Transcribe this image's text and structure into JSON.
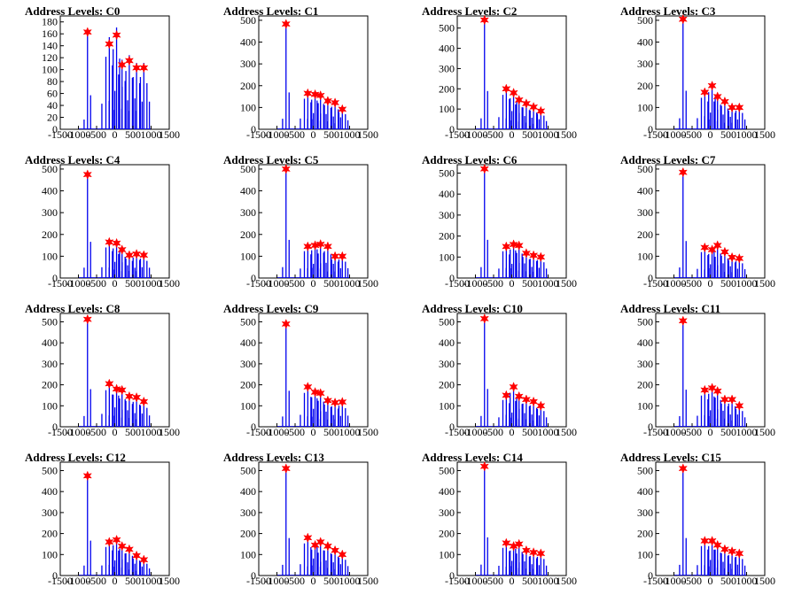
{
  "colors": {
    "histogram": "#0000ee",
    "peak_marker": "#ff0000",
    "axes": "#000000"
  },
  "chart_data": [
    {
      "type": "bar",
      "title": "Address Levels: C0",
      "xlim": [
        -1500,
        1500
      ],
      "ylim": [
        0,
        190
      ],
      "yticks": [
        0,
        20,
        40,
        60,
        80,
        100,
        120,
        140,
        160,
        180
      ],
      "xticks": [
        -1500,
        -1000,
        -500,
        0,
        500,
        1000,
        1500
      ],
      "xticklabels": [
        "-1500",
        "-1000",
        "-500",
        "0",
        "500",
        "1000",
        "1500"
      ],
      "peaks": [
        [
          -750,
          163
        ],
        [
          -150,
          143
        ],
        [
          50,
          158
        ],
        [
          200,
          108
        ],
        [
          400,
          115
        ],
        [
          600,
          103
        ],
        [
          800,
          103
        ]
      ]
    },
    {
      "type": "bar",
      "title": "Address Levels: C1",
      "xlim": [
        -1500,
        1500
      ],
      "ylim": [
        0,
        520
      ],
      "yticks": [
        0,
        100,
        200,
        300,
        400,
        500
      ],
      "xticks": [
        -1500,
        -1000,
        -500,
        0,
        500,
        1000,
        1500
      ],
      "xticklabels": [
        "-1500",
        "-1000",
        "-500",
        "0",
        "500",
        "1000",
        "1500"
      ],
      "peaks": [
        [
          -750,
          483
        ],
        [
          -150,
          165
        ],
        [
          50,
          160
        ],
        [
          200,
          155
        ],
        [
          400,
          130
        ],
        [
          600,
          122
        ],
        [
          800,
          92
        ]
      ]
    },
    {
      "type": "bar",
      "title": "Address Levels: C2",
      "xlim": [
        -1500,
        1500
      ],
      "ylim": [
        0,
        560
      ],
      "yticks": [
        0,
        100,
        200,
        300,
        400,
        500
      ],
      "xticks": [
        -1500,
        -1000,
        -500,
        0,
        500,
        1000,
        1500
      ],
      "xticklabels": [
        "-1500",
        "-1000",
        "-500",
        "0",
        "500",
        "1000",
        "1500"
      ],
      "peaks": [
        [
          -750,
          540
        ],
        [
          -150,
          200
        ],
        [
          50,
          180
        ],
        [
          200,
          145
        ],
        [
          400,
          127
        ],
        [
          600,
          110
        ],
        [
          800,
          90
        ]
      ]
    },
    {
      "type": "bar",
      "title": "Address Levels: C3",
      "xlim": [
        -1500,
        1500
      ],
      "ylim": [
        0,
        520
      ],
      "yticks": [
        0,
        100,
        200,
        300,
        400,
        500
      ],
      "xticks": [
        -1500,
        -1000,
        -500,
        0,
        500,
        1000,
        1500
      ],
      "xticklabels": [
        "-1500",
        "-1000",
        "-500",
        "0",
        "500",
        "1000",
        "1500"
      ],
      "peaks": [
        [
          -750,
          505
        ],
        [
          -150,
          170
        ],
        [
          50,
          200
        ],
        [
          200,
          150
        ],
        [
          400,
          127
        ],
        [
          600,
          100
        ],
        [
          800,
          100
        ]
      ]
    },
    {
      "type": "bar",
      "title": "Address Levels: C4",
      "xlim": [
        -1500,
        1500
      ],
      "ylim": [
        0,
        520
      ],
      "yticks": [
        0,
        100,
        200,
        300,
        400,
        500
      ],
      "xticks": [
        -1500,
        -1000,
        -500,
        0,
        500,
        1000,
        1500
      ],
      "xticklabels": [
        "-1500",
        "-1000",
        "-500",
        "0",
        "500",
        "1000",
        "1500"
      ],
      "peaks": [
        [
          -750,
          475
        ],
        [
          -150,
          165
        ],
        [
          50,
          160
        ],
        [
          200,
          130
        ],
        [
          400,
          105
        ],
        [
          600,
          110
        ],
        [
          800,
          105
        ]
      ]
    },
    {
      "type": "bar",
      "title": "Address Levels: C5",
      "xlim": [
        -1500,
        1500
      ],
      "ylim": [
        0,
        520
      ],
      "yticks": [
        0,
        100,
        200,
        300,
        400,
        500
      ],
      "xticks": [
        -1500,
        -1000,
        -500,
        0,
        500,
        1000,
        1500
      ],
      "xticklabels": [
        "-1500",
        "-1000",
        "-500",
        "0",
        "500",
        "1000",
        "1500"
      ],
      "peaks": [
        [
          -750,
          500
        ],
        [
          -150,
          145
        ],
        [
          50,
          150
        ],
        [
          200,
          155
        ],
        [
          400,
          145
        ],
        [
          600,
          100
        ],
        [
          800,
          100
        ]
      ]
    },
    {
      "type": "bar",
      "title": "Address Levels: C6",
      "xlim": [
        -1500,
        1500
      ],
      "ylim": [
        0,
        540
      ],
      "yticks": [
        0,
        100,
        200,
        300,
        400,
        500
      ],
      "xticks": [
        -1500,
        -1000,
        -500,
        0,
        500,
        1000,
        1500
      ],
      "xticklabels": [
        "-1500",
        "-1000",
        "-500",
        "0",
        "500",
        "1000",
        "1500"
      ],
      "peaks": [
        [
          -750,
          520
        ],
        [
          -150,
          150
        ],
        [
          50,
          160
        ],
        [
          200,
          155
        ],
        [
          400,
          118
        ],
        [
          600,
          108
        ],
        [
          800,
          100
        ]
      ]
    },
    {
      "type": "bar",
      "title": "Address Levels: C7",
      "xlim": [
        -1500,
        1500
      ],
      "ylim": [
        0,
        520
      ],
      "yticks": [
        0,
        100,
        200,
        300,
        400,
        500
      ],
      "xticks": [
        -1500,
        -1000,
        -500,
        0,
        500,
        1000,
        1500
      ],
      "xticklabels": [
        "-1500",
        "-1000",
        "-500",
        "0",
        "500",
        "1000",
        "1500"
      ],
      "peaks": [
        [
          -750,
          485
        ],
        [
          -150,
          140
        ],
        [
          50,
          130
        ],
        [
          200,
          150
        ],
        [
          400,
          120
        ],
        [
          600,
          95
        ],
        [
          800,
          90
        ]
      ]
    },
    {
      "type": "bar",
      "title": "Address Levels: C8",
      "xlim": [
        -1500,
        1500
      ],
      "ylim": [
        0,
        540
      ],
      "yticks": [
        0,
        100,
        200,
        300,
        400,
        500
      ],
      "xticks": [
        -1500,
        -1000,
        -500,
        0,
        500,
        1000,
        1500
      ],
      "xticklabels": [
        "-1500",
        "-1000",
        "-500",
        "0",
        "500",
        "1000",
        "1500"
      ],
      "peaks": [
        [
          -750,
          512
        ],
        [
          -150,
          205
        ],
        [
          50,
          180
        ],
        [
          200,
          175
        ],
        [
          400,
          145
        ],
        [
          600,
          140
        ],
        [
          800,
          120
        ]
      ]
    },
    {
      "type": "bar",
      "title": "Address Levels: C9",
      "xlim": [
        -1500,
        1500
      ],
      "ylim": [
        0,
        540
      ],
      "yticks": [
        0,
        100,
        200,
        300,
        400,
        500
      ],
      "xticks": [
        -1500,
        -1000,
        -500,
        0,
        500,
        1000,
        1500
      ],
      "xticklabels": [
        "-1500",
        "-1000",
        "-500",
        "0",
        "500",
        "1000",
        "1500"
      ],
      "peaks": [
        [
          -750,
          490
        ],
        [
          -150,
          190
        ],
        [
          50,
          165
        ],
        [
          200,
          160
        ],
        [
          400,
          125
        ],
        [
          600,
          115
        ],
        [
          800,
          118
        ]
      ]
    },
    {
      "type": "bar",
      "title": "Address Levels: C10",
      "xlim": [
        -1500,
        1500
      ],
      "ylim": [
        0,
        540
      ],
      "yticks": [
        0,
        100,
        200,
        300,
        400,
        500
      ],
      "xticks": [
        -1500,
        -1000,
        -500,
        0,
        500,
        1000,
        1500
      ],
      "xticklabels": [
        "-1500",
        "-1000",
        "-500",
        "0",
        "500",
        "1000",
        "1500"
      ],
      "peaks": [
        [
          -750,
          515
        ],
        [
          -150,
          150
        ],
        [
          50,
          190
        ],
        [
          200,
          145
        ],
        [
          400,
          130
        ],
        [
          600,
          120
        ],
        [
          800,
          100
        ]
      ]
    },
    {
      "type": "bar",
      "title": "Address Levels: C11",
      "xlim": [
        -1500,
        1500
      ],
      "ylim": [
        0,
        540
      ],
      "yticks": [
        0,
        100,
        200,
        300,
        400,
        500
      ],
      "xticks": [
        -1500,
        -1000,
        -500,
        0,
        500,
        1000,
        1500
      ],
      "xticklabels": [
        "-1500",
        "-1000",
        "-500",
        "0",
        "500",
        "1000",
        "1500"
      ],
      "peaks": [
        [
          -750,
          505
        ],
        [
          -150,
          175
        ],
        [
          50,
          185
        ],
        [
          200,
          170
        ],
        [
          400,
          130
        ],
        [
          600,
          130
        ],
        [
          800,
          100
        ]
      ]
    },
    {
      "type": "bar",
      "title": "Address Levels: C12",
      "xlim": [
        -1500,
        1500
      ],
      "ylim": [
        0,
        540
      ],
      "yticks": [
        0,
        100,
        200,
        300,
        400,
        500
      ],
      "xticks": [
        -1500,
        -1000,
        -500,
        0,
        500,
        1000,
        1500
      ],
      "xticklabels": [
        "-1500",
        "-1000",
        "-500",
        "0",
        "500",
        "1000",
        "1500"
      ],
      "peaks": [
        [
          -750,
          475
        ],
        [
          -150,
          160
        ],
        [
          50,
          170
        ],
        [
          200,
          140
        ],
        [
          400,
          125
        ],
        [
          600,
          95
        ],
        [
          800,
          75
        ]
      ]
    },
    {
      "type": "bar",
      "title": "Address Levels: C13",
      "xlim": [
        -1500,
        1500
      ],
      "ylim": [
        0,
        540
      ],
      "yticks": [
        0,
        100,
        200,
        300,
        400,
        500
      ],
      "xticks": [
        -1500,
        -1000,
        -500,
        0,
        500,
        1000,
        1500
      ],
      "xticklabels": [
        "-1500",
        "-1000",
        "-500",
        "0",
        "500",
        "1000",
        "1500"
      ],
      "peaks": [
        [
          -750,
          510
        ],
        [
          -150,
          180
        ],
        [
          50,
          145
        ],
        [
          200,
          160
        ],
        [
          400,
          140
        ],
        [
          600,
          120
        ],
        [
          800,
          100
        ]
      ]
    },
    {
      "type": "bar",
      "title": "Address Levels: C14",
      "xlim": [
        -1500,
        1500
      ],
      "ylim": [
        0,
        540
      ],
      "yticks": [
        0,
        100,
        200,
        300,
        400,
        500
      ],
      "xticks": [
        -1500,
        -1000,
        -500,
        0,
        500,
        1000,
        1500
      ],
      "xticklabels": [
        "-1500",
        "-1000",
        "-500",
        "0",
        "500",
        "1000",
        "1500"
      ],
      "peaks": [
        [
          -750,
          520
        ],
        [
          -150,
          155
        ],
        [
          50,
          140
        ],
        [
          200,
          150
        ],
        [
          400,
          120
        ],
        [
          600,
          110
        ],
        [
          800,
          105
        ]
      ]
    },
    {
      "type": "bar",
      "title": "Address Levels: C15",
      "xlim": [
        -1500,
        1500
      ],
      "ylim": [
        0,
        540
      ],
      "yticks": [
        0,
        100,
        200,
        300,
        400,
        500
      ],
      "xticks": [
        -1500,
        -1000,
        -500,
        0,
        500,
        1000,
        1500
      ],
      "xticklabels": [
        "-1500",
        "-1000",
        "-500",
        "0",
        "500",
        "1000",
        "1500"
      ],
      "peaks": [
        [
          -750,
          510
        ],
        [
          -150,
          165
        ],
        [
          50,
          165
        ],
        [
          200,
          145
        ],
        [
          400,
          125
        ],
        [
          600,
          115
        ],
        [
          800,
          105
        ]
      ]
    }
  ]
}
